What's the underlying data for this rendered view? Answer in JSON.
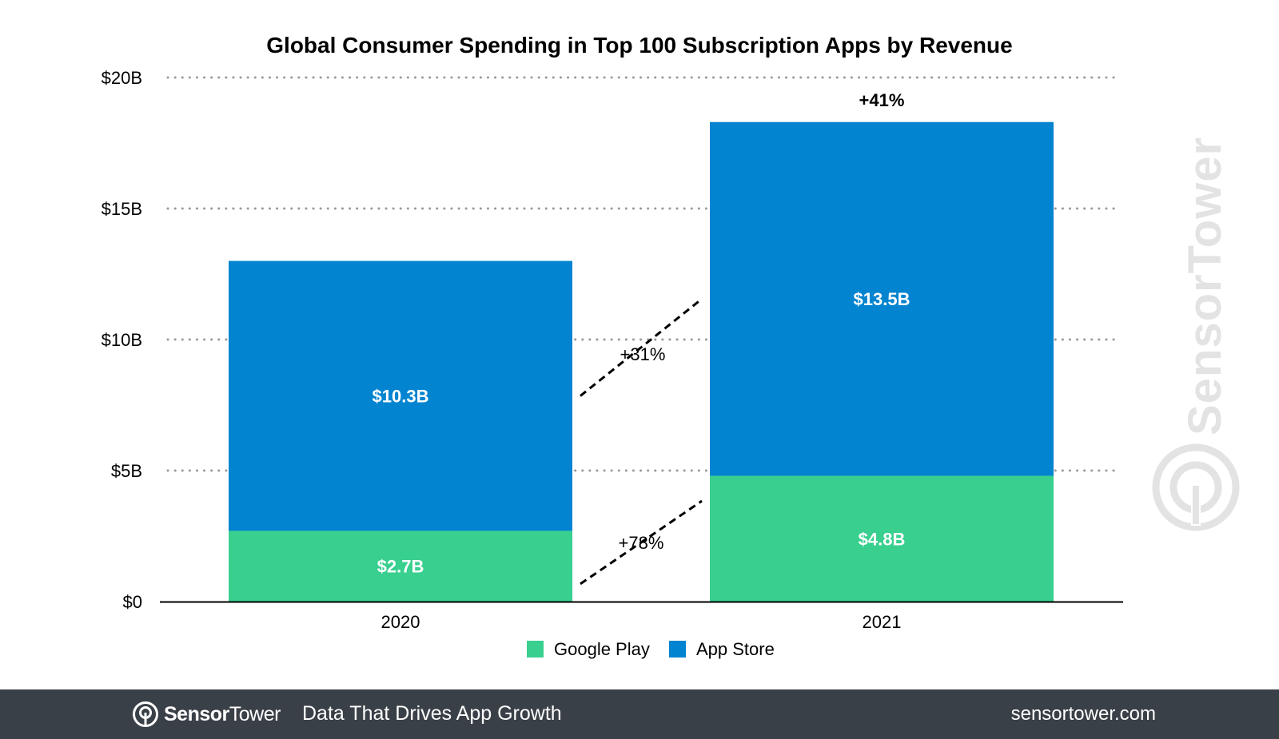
{
  "chart_data": {
    "type": "bar",
    "stacked": true,
    "title": "Global Consumer Spending in Top 100 Subscription Apps by Revenue",
    "categories": [
      "2020",
      "2021"
    ],
    "series": [
      {
        "name": "Google Play",
        "color": "#38cf8f",
        "values": [
          2.7,
          4.8
        ],
        "labels": [
          "$2.7B",
          "$4.8B"
        ]
      },
      {
        "name": "App Store",
        "color": "#0384d0",
        "values": [
          10.3,
          13.5
        ],
        "labels": [
          "$10.3B",
          "$13.5B"
        ]
      }
    ],
    "ylim": [
      0,
      20
    ],
    "yticks": [
      {
        "value": 0,
        "label": "$0"
      },
      {
        "value": 5,
        "label": "$5B"
      },
      {
        "value": 10,
        "label": "$10B"
      },
      {
        "value": 15,
        "label": "$15B"
      },
      {
        "value": 20,
        "label": "$20B"
      }
    ],
    "grid": "dotted",
    "legend_position": "bottom",
    "annotations": {
      "total_growth": "+41%",
      "app_store_growth": "+31%",
      "google_play_growth": "+78%"
    }
  },
  "footer": {
    "brand_bold": "Sensor",
    "brand_light": "Tower",
    "tagline": "Data That Drives App Growth",
    "website": "sensortower.com"
  },
  "watermark": {
    "text": "SensorTower"
  }
}
